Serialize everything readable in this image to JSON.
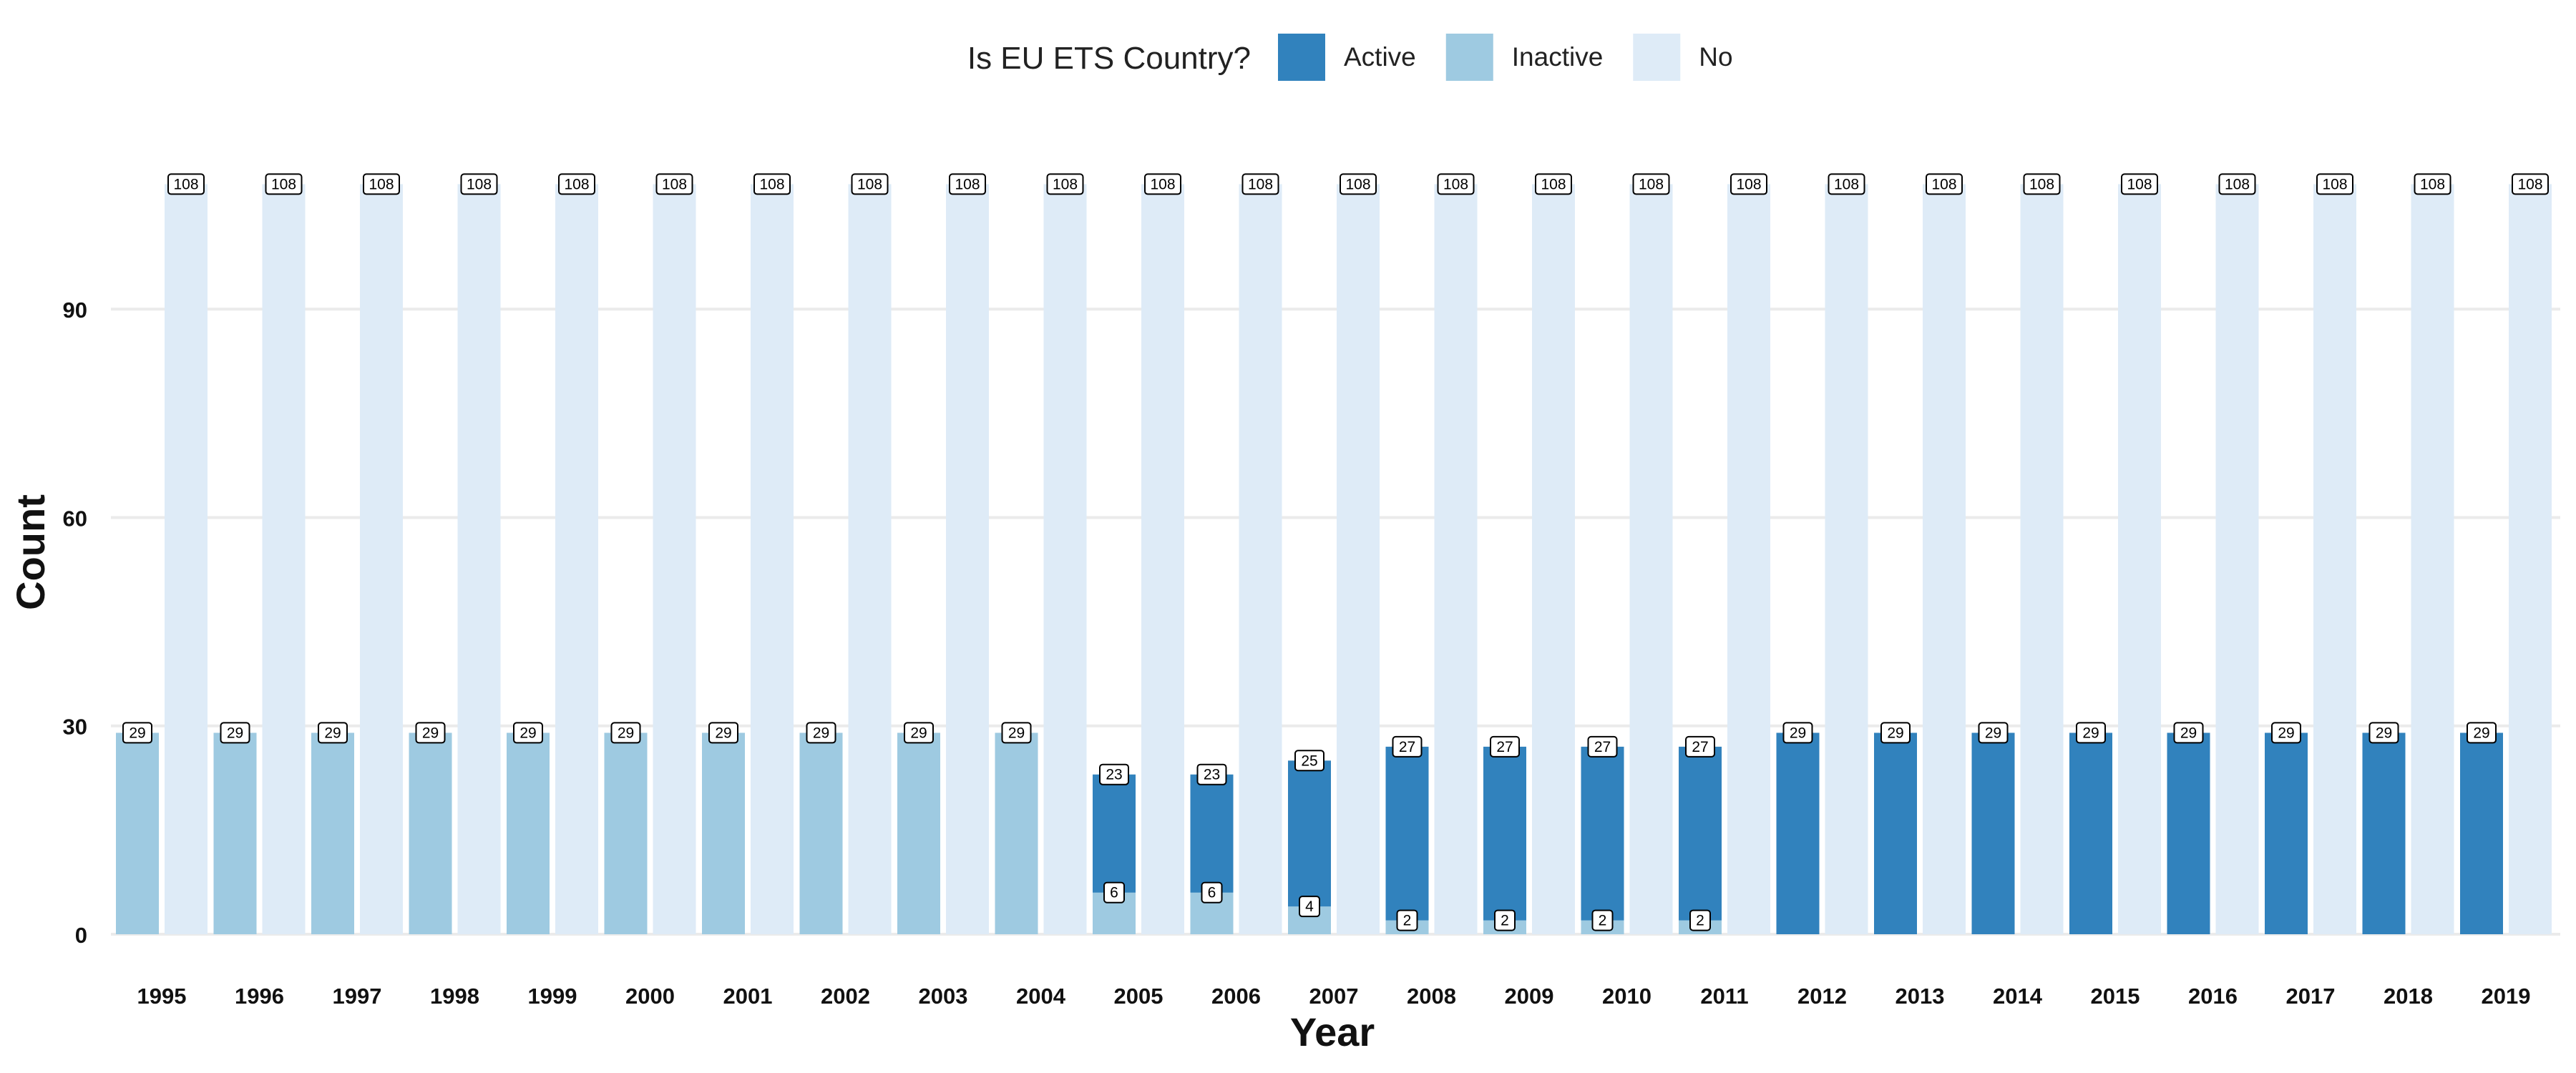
{
  "chart_data": {
    "type": "bar",
    "xlabel": "Year",
    "ylabel": "Count",
    "ylim": [
      0,
      110
    ],
    "yticks": [
      0,
      30,
      60,
      90
    ],
    "grid": "horizontal",
    "legend": {
      "title": "Is EU ETS Country?",
      "position": "top"
    },
    "categories": [
      "1995",
      "1996",
      "1997",
      "1998",
      "1999",
      "2000",
      "2001",
      "2002",
      "2003",
      "2004",
      "2005",
      "2006",
      "2007",
      "2008",
      "2009",
      "2010",
      "2011",
      "2012",
      "2013",
      "2014",
      "2015",
      "2016",
      "2017",
      "2018",
      "2019"
    ],
    "series": [
      {
        "name": "Active",
        "color": "#3182bd",
        "values": [
          null,
          null,
          null,
          null,
          null,
          null,
          null,
          null,
          null,
          null,
          23,
          23,
          25,
          27,
          27,
          27,
          27,
          29,
          29,
          29,
          29,
          29,
          29,
          29,
          29
        ]
      },
      {
        "name": "Inactive",
        "color": "#9ecae1",
        "values": [
          29,
          29,
          29,
          29,
          29,
          29,
          29,
          29,
          29,
          29,
          6,
          6,
          4,
          2,
          2,
          2,
          2,
          null,
          null,
          null,
          null,
          null,
          null,
          null,
          null
        ]
      },
      {
        "name": "No",
        "color": "#deebf7",
        "values": [
          108,
          108,
          108,
          108,
          108,
          108,
          108,
          108,
          108,
          108,
          108,
          108,
          108,
          108,
          108,
          108,
          108,
          108,
          108,
          108,
          108,
          108,
          108,
          108,
          108
        ]
      }
    ]
  }
}
